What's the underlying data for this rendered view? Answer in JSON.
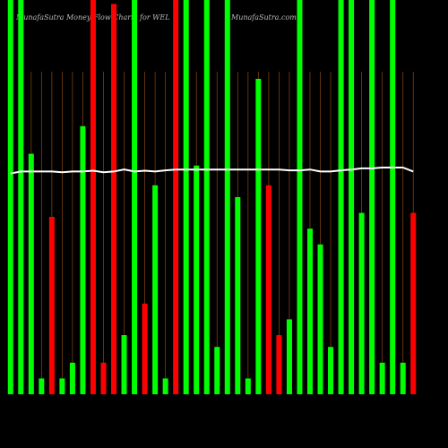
{
  "chart_data": {
    "type": "bar",
    "title": "MunafaSutra  Money Flow  Charts for WEL",
    "subtitle": "MunafaSutra.com",
    "categories": [
      null,
      null,
      null,
      null,
      null,
      null,
      null,
      null,
      null,
      null,
      null,
      null,
      null,
      null,
      null,
      null,
      null,
      null,
      null,
      null,
      null,
      null,
      null,
      null,
      null,
      null,
      null,
      null,
      null,
      null,
      null,
      null,
      null,
      null,
      null,
      null,
      null,
      null,
      null,
      null
    ],
    "values": [
      100,
      100,
      61,
      4,
      45,
      4,
      8,
      68,
      100,
      8,
      99,
      15,
      100,
      23,
      53,
      4,
      100,
      100,
      58,
      100,
      12,
      100,
      50,
      4,
      80,
      53,
      15,
      19,
      100,
      42,
      38,
      12,
      100,
      100,
      46,
      100,
      8,
      100,
      8,
      46
    ],
    "colors": [
      "#00ff00",
      "#00ff00",
      "#00ff00",
      "#00ff00",
      "#ff0000",
      "#00ff00",
      "#00ff00",
      "#00ff00",
      "#ff0000",
      "#ff0000",
      "#ff0000",
      "#00ff00",
      "#00ff00",
      "#ff0000",
      "#00ff00",
      "#00ff00",
      "#ff0000",
      "#00ff00",
      "#00ff00",
      "#00ff00",
      "#00ff00",
      "#00ff00",
      "#00ff00",
      "#00ff00",
      "#00ff00",
      "#ff0000",
      "#ff0000",
      "#00ff00",
      "#00ff00",
      "#00ff00",
      "#00ff00",
      "#00ff00",
      "#00ff00",
      "#00ff00",
      "#00ff00",
      "#00ff00",
      "#00ff00",
      "#00ff00",
      "#00ff00",
      "#ff0000"
    ],
    "line": {
      "color": "#ffffff",
      "values": [
        56,
        56.5,
        56.5,
        56.5,
        56.5,
        56.3,
        56.5,
        56.5,
        56.7,
        56.3,
        56.5,
        57,
        56.5,
        56.7,
        56.5,
        56.8,
        57,
        57,
        57,
        57,
        57,
        57,
        57,
        57,
        57,
        57,
        57,
        56.8,
        56.8,
        57,
        56.5,
        56.5,
        56.8,
        57,
        57.3,
        57.3,
        57.5,
        57.5,
        57.5,
        56.5
      ]
    },
    "ylim": [
      0,
      100
    ],
    "grid": true,
    "grid_color": "#7a3f10"
  }
}
